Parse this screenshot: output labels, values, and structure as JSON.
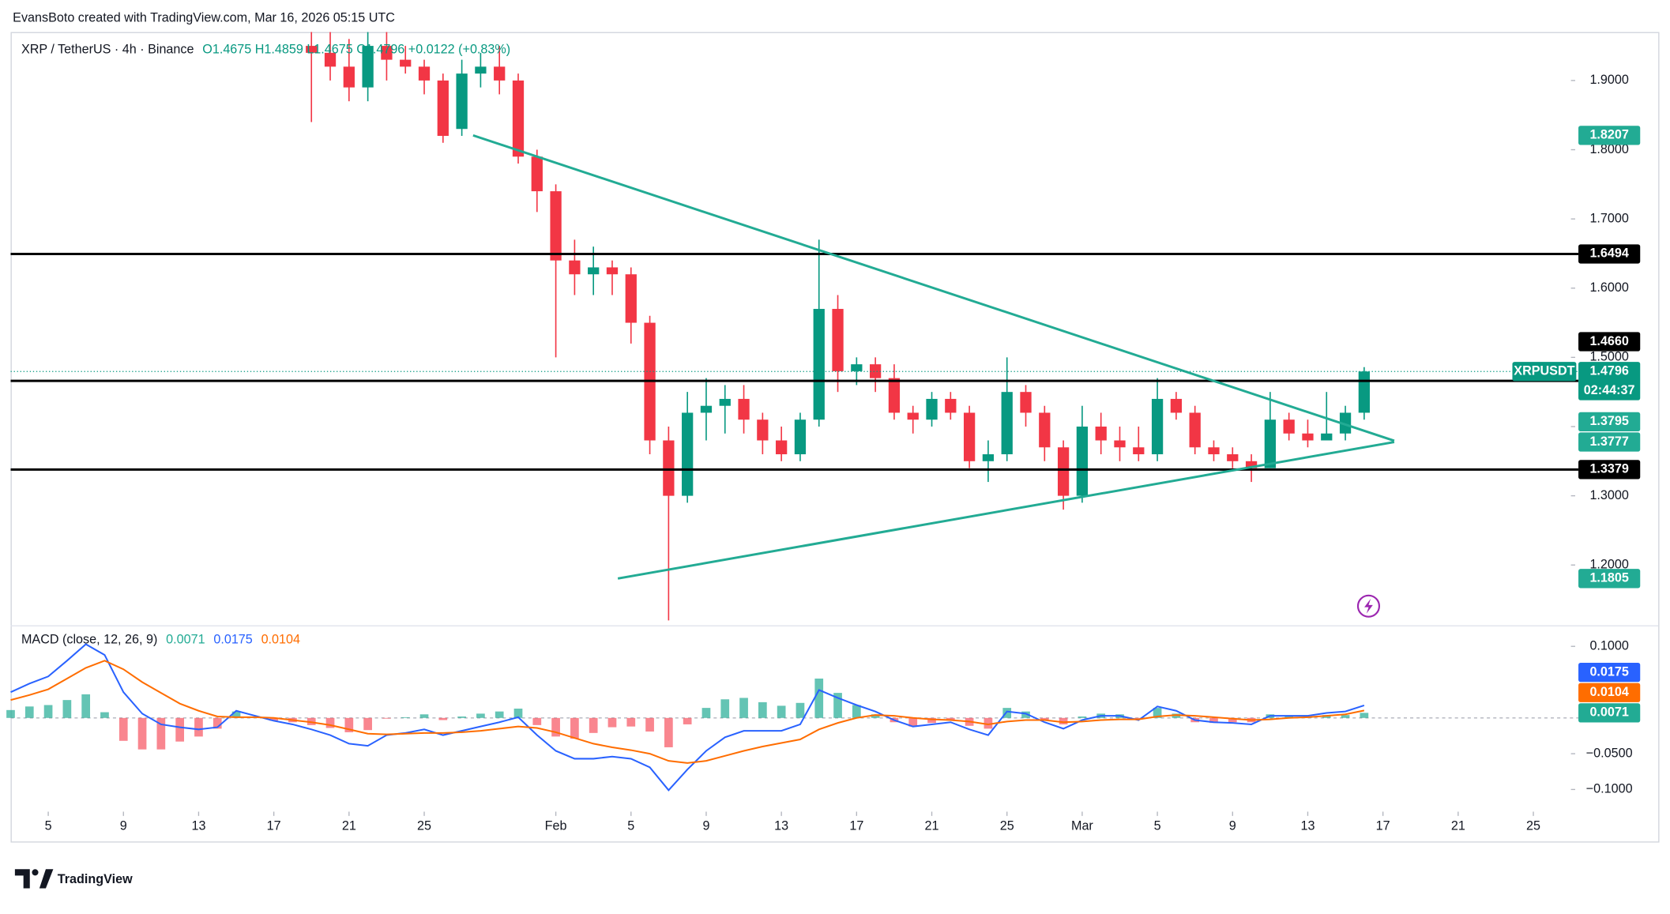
{
  "attribution": "EvansBoto created with TradingView.com, Mar 16, 2026 05:15 UTC",
  "brand": "TradingView",
  "chart_data": [
    {
      "type": "candlestick",
      "title": "XRP / TetherUS · 4h · Binance",
      "ohlc_text": "O1.4675 H1.4859 L1.4675 C1.4796 +0.0122 (+0.83%)",
      "up_color": "#089981",
      "down_color": "#f23645",
      "x": [
        19,
        20,
        21,
        22,
        23,
        24,
        25,
        26,
        27,
        28,
        29,
        30,
        31,
        32,
        33,
        34,
        35,
        36,
        37,
        38,
        39,
        40,
        41,
        42,
        43,
        44,
        45,
        46,
        47,
        48,
        49,
        50,
        51,
        52,
        53,
        54,
        55,
        56,
        57,
        58,
        59,
        60,
        61,
        62,
        63,
        64,
        65,
        66,
        67,
        68,
        69,
        70,
        71,
        72,
        73,
        74,
        75
      ],
      "open": [
        1.95,
        1.94,
        1.92,
        1.89,
        1.95,
        1.93,
        1.92,
        1.9,
        1.83,
        1.91,
        1.92,
        1.9,
        1.79,
        1.74,
        1.64,
        1.62,
        1.63,
        1.62,
        1.55,
        1.38,
        1.3,
        1.42,
        1.43,
        1.44,
        1.41,
        1.38,
        1.36,
        1.41,
        1.57,
        1.48,
        1.49,
        1.47,
        1.42,
        1.41,
        1.44,
        1.42,
        1.35,
        1.36,
        1.45,
        1.42,
        1.37,
        1.3,
        1.4,
        1.38,
        1.37,
        1.36,
        1.44,
        1.42,
        1.37,
        1.36,
        1.35,
        1.34,
        1.41,
        1.39,
        1.38,
        1.39,
        1.42
      ],
      "high": [
        1.97,
        1.97,
        1.96,
        1.97,
        1.97,
        1.95,
        1.93,
        1.91,
        1.93,
        1.94,
        1.95,
        1.91,
        1.8,
        1.75,
        1.67,
        1.66,
        1.64,
        1.63,
        1.56,
        1.4,
        1.45,
        1.47,
        1.46,
        1.46,
        1.42,
        1.4,
        1.42,
        1.67,
        1.59,
        1.5,
        1.5,
        1.49,
        1.43,
        1.45,
        1.45,
        1.43,
        1.38,
        1.5,
        1.46,
        1.43,
        1.38,
        1.43,
        1.42,
        1.4,
        1.4,
        1.47,
        1.45,
        1.43,
        1.38,
        1.37,
        1.36,
        1.45,
        1.42,
        1.41,
        1.45,
        1.43,
        1.4859
      ],
      "low": [
        1.84,
        1.9,
        1.87,
        1.87,
        1.9,
        1.91,
        1.88,
        1.81,
        1.82,
        1.89,
        1.88,
        1.78,
        1.71,
        1.5,
        1.59,
        1.59,
        1.59,
        1.52,
        1.36,
        1.12,
        1.29,
        1.38,
        1.39,
        1.39,
        1.36,
        1.35,
        1.35,
        1.4,
        1.45,
        1.46,
        1.45,
        1.41,
        1.39,
        1.4,
        1.41,
        1.34,
        1.32,
        1.35,
        1.4,
        1.35,
        1.28,
        1.29,
        1.36,
        1.35,
        1.35,
        1.35,
        1.41,
        1.36,
        1.35,
        1.34,
        1.32,
        1.34,
        1.38,
        1.37,
        1.38,
        1.38,
        1.41
      ],
      "close": [
        1.94,
        1.92,
        1.89,
        1.95,
        1.93,
        1.92,
        1.9,
        1.82,
        1.91,
        1.92,
        1.9,
        1.79,
        1.74,
        1.64,
        1.62,
        1.63,
        1.62,
        1.55,
        1.38,
        1.3,
        1.42,
        1.43,
        1.44,
        1.41,
        1.38,
        1.36,
        1.41,
        1.57,
        1.48,
        1.49,
        1.47,
        1.42,
        1.41,
        1.44,
        1.42,
        1.35,
        1.36,
        1.45,
        1.42,
        1.37,
        1.3,
        1.4,
        1.38,
        1.37,
        1.36,
        1.44,
        1.42,
        1.37,
        1.36,
        1.35,
        1.34,
        1.41,
        1.39,
        1.38,
        1.39,
        1.42,
        1.4796
      ],
      "xlim": [
        3,
        86
      ],
      "ylim": [
        1.116,
        1.97
      ],
      "yticks": [
        {
          "value": 1.2,
          "label": "1.2000"
        },
        {
          "value": 1.3,
          "label": "1.3000"
        },
        {
          "value": 1.4,
          "label": "1.4000"
        },
        {
          "value": 1.5,
          "label": "1.5000"
        },
        {
          "value": 1.6,
          "label": "1.6000"
        },
        {
          "value": 1.7,
          "label": "1.7000"
        },
        {
          "value": 1.8,
          "label": "1.8000"
        },
        {
          "value": 1.9,
          "label": "1.9000"
        }
      ],
      "levels": {
        "color": "#000000",
        "values": [
          1.6494,
          {
            "value": 1.466,
            "label": "1.4660"
          },
          1.3379
        ]
      },
      "trendlines": [
        {
          "color": "#22ab94",
          "x": [
            27.6,
            76.6
          ],
          "values": [
            1.8207,
            1.3795
          ]
        },
        {
          "color": "#22ab94",
          "x": [
            35.3,
            76.6
          ],
          "values": [
            1.1805,
            1.3777
          ]
        }
      ],
      "last_price_label": "XRPUSDT",
      "countdown": "02:44:37"
    },
    {
      "type": "macd",
      "title": "MACD (close, 12, 26, 9)",
      "x": [
        3,
        4,
        5,
        6,
        7,
        8,
        9,
        10,
        11,
        12,
        13,
        14,
        15,
        16,
        17,
        18,
        19,
        20,
        21,
        22,
        23,
        24,
        25,
        26,
        27,
        28,
        29,
        30,
        31,
        32,
        33,
        34,
        35,
        36,
        37,
        38,
        39,
        40,
        41,
        42,
        43,
        44,
        45,
        46,
        47,
        48,
        49,
        50,
        51,
        52,
        53,
        54,
        55,
        56,
        57,
        58,
        59,
        60,
        61,
        62,
        63,
        64,
        65,
        66,
        67,
        68,
        69,
        70,
        71,
        72,
        73,
        74,
        75
      ],
      "histogram": {
        "up_color": "#22ab94",
        "down_color": "#f7525f",
        "values": [
          0.011,
          0.016,
          0.018,
          0.025,
          0.033,
          0.008,
          -0.032,
          -0.044,
          -0.044,
          -0.033,
          -0.026,
          -0.015,
          0.009,
          0.002,
          -0.004,
          -0.006,
          -0.01,
          -0.014,
          -0.02,
          -0.017,
          -0.001,
          0.001,
          0.005,
          -0.003,
          0.002,
          0.006,
          0.009,
          0.013,
          -0.01,
          -0.026,
          -0.029,
          -0.021,
          -0.013,
          -0.012,
          -0.019,
          -0.041,
          -0.009,
          0.014,
          0.026,
          0.028,
          0.022,
          0.017,
          0.021,
          0.055,
          0.035,
          0.018,
          0.005,
          -0.006,
          -0.012,
          -0.007,
          -0.003,
          -0.011,
          -0.015,
          0.014,
          0.009,
          -0.003,
          -0.009,
          0.002,
          0.006,
          0.005,
          -0.001,
          0.014,
          0.006,
          -0.006,
          -0.007,
          -0.006,
          -0.006,
          0.005,
          0.003,
          0.002,
          0.004,
          0.004,
          0.0071
        ]
      },
      "series": [
        {
          "color": "#2962ff",
          "values": [
            0.036,
            0.048,
            0.058,
            0.08,
            0.103,
            0.088,
            0.036,
            0.006,
            -0.009,
            -0.013,
            -0.016,
            -0.013,
            0.01,
            0.003,
            -0.004,
            -0.009,
            -0.016,
            -0.024,
            -0.036,
            -0.039,
            -0.024,
            -0.021,
            -0.016,
            -0.024,
            -0.018,
            -0.012,
            -0.006,
            0.001,
            -0.024,
            -0.046,
            -0.057,
            -0.057,
            -0.054,
            -0.057,
            -0.069,
            -0.101,
            -0.072,
            -0.046,
            -0.027,
            -0.018,
            -0.018,
            -0.018,
            -0.009,
            0.039,
            0.028,
            0.018,
            0.009,
            -0.003,
            -0.012,
            -0.009,
            -0.006,
            -0.016,
            -0.024,
            0.009,
            0.006,
            -0.006,
            -0.015,
            -0.003,
            0.003,
            0.003,
            -0.003,
            0.016,
            0.01,
            -0.003,
            -0.006,
            -0.007,
            -0.009,
            0.003,
            0.003,
            0.003,
            0.007,
            0.009,
            0.0175
          ]
        },
        {
          "color": "#ff6d00",
          "values": [
            0.025,
            0.032,
            0.04,
            0.055,
            0.07,
            0.08,
            0.068,
            0.05,
            0.035,
            0.02,
            0.01,
            0.002,
            0.001,
            0.001,
            0,
            -0.003,
            -0.006,
            -0.01,
            -0.016,
            -0.022,
            -0.023,
            -0.022,
            -0.021,
            -0.021,
            -0.02,
            -0.018,
            -0.015,
            -0.012,
            -0.014,
            -0.02,
            -0.028,
            -0.036,
            -0.041,
            -0.045,
            -0.05,
            -0.06,
            -0.063,
            -0.06,
            -0.053,
            -0.046,
            -0.04,
            -0.035,
            -0.03,
            -0.016,
            -0.007,
            0,
            0.004,
            0.003,
            0,
            -0.002,
            -0.003,
            -0.005,
            -0.009,
            -0.005,
            -0.003,
            -0.003,
            -0.006,
            -0.005,
            -0.003,
            -0.002,
            -0.002,
            0.002,
            0.004,
            0.003,
            0.001,
            -0.001,
            -0.003,
            -0.002,
            0,
            0.001,
            0.003,
            0.005,
            0.0104
          ]
        }
      ],
      "xlim": [
        3,
        86
      ],
      "ylim": [
        -0.128,
        0.125
      ],
      "yticks": [
        {
          "value": 0.1,
          "label": "0.1000"
        },
        {
          "value": -0.05,
          "label": "−0.0500"
        },
        {
          "value": -0.1,
          "label": "−0.1000"
        }
      ],
      "xticks": [
        {
          "value": 5,
          "label": "5"
        },
        {
          "value": 9,
          "label": "9"
        },
        {
          "value": 13,
          "label": "13"
        },
        {
          "value": 17,
          "label": "17"
        },
        {
          "value": 21,
          "label": "21"
        },
        {
          "value": 25,
          "label": "25"
        },
        {
          "value": 32,
          "label": "Feb"
        },
        {
          "value": 36,
          "label": "5"
        },
        {
          "value": 40,
          "label": "9"
        },
        {
          "value": 44,
          "label": "13"
        },
        {
          "value": 48,
          "label": "17"
        },
        {
          "value": 52,
          "label": "21"
        },
        {
          "value": 56,
          "label": "25"
        },
        {
          "value": 60,
          "label": "Mar"
        },
        {
          "value": 64,
          "label": "5"
        },
        {
          "value": 68,
          "label": "9"
        },
        {
          "value": 72,
          "label": "13"
        },
        {
          "value": 76,
          "label": "17"
        },
        {
          "value": 80,
          "label": "21"
        },
        {
          "value": 84,
          "label": "25"
        }
      ]
    }
  ]
}
